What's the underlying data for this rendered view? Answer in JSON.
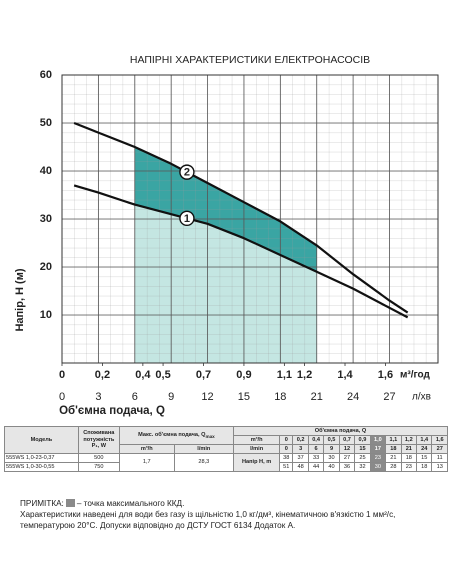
{
  "chart_data": {
    "type": "line",
    "title": "НАПІРНІ ХАРАКТЕРИСТИКИ ЕЛЕКТРОНАСОСІВ",
    "ylabel": "Напір, H (м)",
    "xlabel": "Об'ємна подача, Q",
    "xunit": "л/хв",
    "x2unit": "м³/год",
    "xlim": [
      0,
      31
    ],
    "ylim": [
      0,
      60
    ],
    "x2lim": [
      0,
      1.86
    ],
    "yticks": [
      10,
      20,
      30,
      40,
      50,
      60
    ],
    "xticks": [
      0,
      3,
      6,
      9,
      12,
      15,
      18,
      21,
      24,
      27
    ],
    "x2ticks": [
      {
        "value": 0,
        "label": "0"
      },
      {
        "value": 0.2,
        "label": "0,2"
      },
      {
        "value": 0.4,
        "label": "0,4"
      },
      {
        "value": 0.5,
        "label": "0,5"
      },
      {
        "value": 0.7,
        "label": "0,7"
      },
      {
        "value": 0.9,
        "label": "0,9"
      },
      {
        "value": 1.1,
        "label": "1,1"
      },
      {
        "value": 1.2,
        "label": "1,2"
      },
      {
        "value": 1.4,
        "label": "1,4"
      },
      {
        "value": 1.6,
        "label": "1,6"
      }
    ],
    "grid": true,
    "shade_x": [
      6,
      21
    ],
    "shade_color": "#c4e6e2",
    "band_color": "#3aa5a3",
    "series": [
      {
        "name": "1",
        "color": "#111111",
        "x": [
          1,
          3,
          6,
          9,
          12,
          15,
          18,
          21,
          24,
          27,
          28.5
        ],
        "values": [
          37,
          35.5,
          33,
          31,
          29,
          26,
          22.5,
          19,
          15.5,
          11.5,
          9.5
        ]
      },
      {
        "name": "2",
        "color": "#111111",
        "x": [
          1,
          3,
          6,
          9,
          12,
          15,
          18,
          21,
          24,
          27,
          28.5
        ],
        "values": [
          50,
          48,
          45,
          41.5,
          37.5,
          33.5,
          29.5,
          24.5,
          18.5,
          13,
          10.5
        ]
      }
    ]
  },
  "table": {
    "headers": {
      "model": "Модель",
      "power": "Споживана потужність P₁, W",
      "qmax": "Макс. об'ємна подача, Q",
      "qmax_sub": "max",
      "qmax_m3h": "m³/h",
      "qmax_lmin": "l/min",
      "flow": "Об'ємна подача, Q",
      "flow_m3h": "m³/h",
      "flow_lmin": "l/min",
      "head": "Напір H, m"
    },
    "flow_m3h": [
      "0",
      "0,2",
      "0,4",
      "0,5",
      "0,7",
      "0,9",
      "1,0",
      "1,1",
      "1,2",
      "1,4",
      "1,6"
    ],
    "flow_lmin": [
      "0",
      "3",
      "6",
      "9",
      "12",
      "15",
      "17",
      "18",
      "21",
      "24",
      "27"
    ],
    "rows": [
      {
        "model": "555WS 1,0-23-0,37",
        "power": "500",
        "qmax_m3h": "1,7",
        "qmax_lmin": "28,3",
        "head": [
          "38",
          "37",
          "33",
          "30",
          "27",
          "25",
          "23",
          "21",
          "18",
          "15",
          "11"
        ]
      },
      {
        "model": "555WS 1,0-30-0,55",
        "power": "750",
        "head": [
          "51",
          "48",
          "44",
          "40",
          "36",
          "32",
          "30",
          "28",
          "23",
          "18",
          "13"
        ]
      }
    ],
    "highlight_column": 6
  },
  "notes": {
    "label": "ПРИМІТКА:",
    "text": "– точка максимального ККД.",
    "description": "Характеристики наведені для води без газу із щільністю 1,0 кг/дм³, кінематичною в'язкістю 1 мм²/с, температурою 20°С. Допуски відповідно до ДСТУ ГОСТ 6134 Додаток А."
  }
}
